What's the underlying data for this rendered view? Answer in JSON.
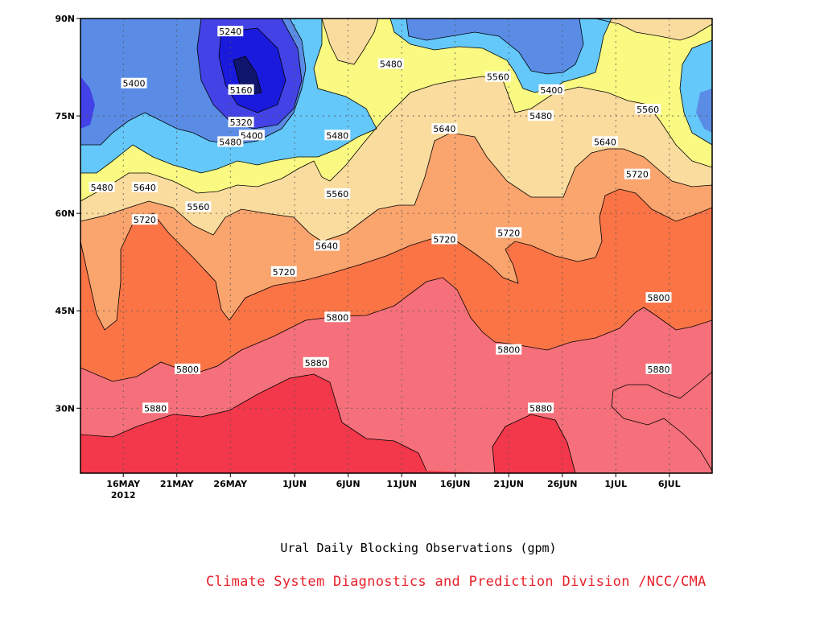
{
  "chart_data": {
    "type": "heatmap",
    "title": "Ural Daily Blocking Observations (gpm)",
    "credit": "Climate System Diagnostics and Prediction Division /NCC/CMA",
    "xlabel": "",
    "ylabel": "",
    "x_ticks": [
      "16MAY\n2012",
      "21MAY",
      "26MAY",
      "1JUN",
      "6JUN",
      "11JUN",
      "16JUN",
      "21JUN",
      "26JUN",
      "1JUL",
      "6JUL"
    ],
    "x_range": [
      "2012-05-12",
      "2012-07-10"
    ],
    "y_ticks": [
      "30N",
      "45N",
      "60N",
      "75N",
      "90N"
    ],
    "y_range": [
      20,
      90
    ],
    "grid": true,
    "contour_levels": [
      5080,
      5160,
      5240,
      5320,
      5400,
      5480,
      5560,
      5640,
      5720,
      5800,
      5880
    ],
    "fill_colors": [
      "#10166e",
      "#1a1adc",
      "#4242e6",
      "#5a8ce6",
      "#64c8fa",
      "#fafa82",
      "#fadc9e",
      "#faa46e",
      "#fa7446",
      "#f5707a",
      "#f2384a"
    ],
    "contour_labels": [
      {
        "date": "2012-05-26",
        "lat": 88,
        "value": "5240"
      },
      {
        "date": "2012-05-27",
        "lat": 79,
        "value": "5160"
      },
      {
        "date": "2012-05-27",
        "lat": 74,
        "value": "5320"
      },
      {
        "date": "2012-05-28",
        "lat": 72,
        "value": "5400"
      },
      {
        "date": "2012-05-26",
        "lat": 71,
        "value": "5480"
      },
      {
        "date": "2012-05-17",
        "lat": 80,
        "value": "5400"
      },
      {
        "date": "2012-05-14",
        "lat": 64,
        "value": "5480"
      },
      {
        "date": "2012-05-18",
        "lat": 64,
        "value": "5640"
      },
      {
        "date": "2012-05-23",
        "lat": 61,
        "value": "5560"
      },
      {
        "date": "2012-05-18",
        "lat": 59,
        "value": "5720"
      },
      {
        "date": "2012-06-05",
        "lat": 72,
        "value": "5480"
      },
      {
        "date": "2012-06-05",
        "lat": 63,
        "value": "5560"
      },
      {
        "date": "2012-06-04",
        "lat": 55,
        "value": "5640"
      },
      {
        "date": "2012-05-31",
        "lat": 51,
        "value": "5720"
      },
      {
        "date": "2012-06-10",
        "lat": 83,
        "value": "5480"
      },
      {
        "date": "2012-06-15",
        "lat": 73,
        "value": "5640"
      },
      {
        "date": "2012-06-15",
        "lat": 56,
        "value": "5720"
      },
      {
        "date": "2012-06-21",
        "lat": 57,
        "value": "5720"
      },
      {
        "date": "2012-06-20",
        "lat": 81,
        "value": "5560"
      },
      {
        "date": "2012-06-25",
        "lat": 79,
        "value": "5400"
      },
      {
        "date": "2012-06-24",
        "lat": 75,
        "value": "5480"
      },
      {
        "date": "2012-07-04",
        "lat": 76,
        "value": "5560"
      },
      {
        "date": "2012-06-30",
        "lat": 71,
        "value": "5640"
      },
      {
        "date": "2012-07-03",
        "lat": 66,
        "value": "5720"
      },
      {
        "date": "2012-05-22",
        "lat": 36,
        "value": "5800"
      },
      {
        "date": "2012-05-19",
        "lat": 30,
        "value": "5880"
      },
      {
        "date": "2012-06-05",
        "lat": 44,
        "value": "5800"
      },
      {
        "date": "2012-06-03",
        "lat": 37,
        "value": "5880"
      },
      {
        "date": "2012-06-21",
        "lat": 39,
        "value": "5800"
      },
      {
        "date": "2012-06-24",
        "lat": 30,
        "value": "5880"
      },
      {
        "date": "2012-07-05",
        "lat": 47,
        "value": "5800"
      },
      {
        "date": "2012-07-05",
        "lat": 36,
        "value": "5880"
      }
    ]
  }
}
